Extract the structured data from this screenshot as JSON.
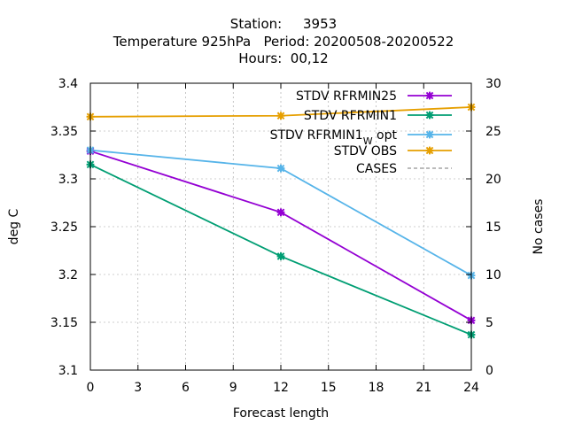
{
  "chart_data": {
    "type": "line",
    "title_lines": [
      "Station:     3953",
      "Temperature 925hPa   Period: 20200508-20200522",
      "Hours:  00,12"
    ],
    "xlabel": "Forecast length",
    "ylabel": "deg C",
    "y2label": "No cases",
    "xlim": [
      0,
      24
    ],
    "ylim": [
      3.1,
      3.4
    ],
    "y2lim": [
      0,
      30
    ],
    "x_ticks": [
      0,
      3,
      6,
      9,
      12,
      15,
      18,
      21,
      24
    ],
    "y_ticks": [
      "3.1",
      "3.15",
      "3.2",
      "3.25",
      "3.3",
      "3.35",
      "3.4"
    ],
    "y2_ticks": [
      0,
      5,
      10,
      15,
      20,
      25,
      30
    ],
    "grid": true,
    "legend_position": "top-right",
    "series": [
      {
        "name": "STDV RFRMIN25",
        "label_main": "STDV RFRMIN25",
        "label_sub": "",
        "label_suffix": "",
        "color": "#9400d3",
        "axis": "y",
        "dashed": false,
        "markers": true,
        "x": [
          0,
          12,
          24
        ],
        "values": [
          3.329,
          3.265,
          3.152
        ]
      },
      {
        "name": "STDV RFRMIN1",
        "label_main": "STDV RFRMIN1",
        "label_sub": "",
        "label_suffix": "",
        "color": "#009e73",
        "axis": "y",
        "dashed": false,
        "markers": true,
        "x": [
          0,
          12,
          24
        ],
        "values": [
          3.315,
          3.219,
          3.137
        ]
      },
      {
        "name": "STDV RFRMIN1_W opt",
        "label_main": "STDV RFRMIN1",
        "label_sub": "W",
        "label_suffix": " opt",
        "color": "#56b4e9",
        "axis": "y",
        "dashed": false,
        "markers": true,
        "x": [
          0,
          12,
          24
        ],
        "values": [
          3.33,
          3.311,
          3.199
        ]
      },
      {
        "name": "STDV OBS",
        "label_main": "STDV OBS",
        "label_sub": "",
        "label_suffix": "",
        "color": "#e69f00",
        "axis": "y",
        "dashed": false,
        "markers": true,
        "x": [
          0,
          12,
          24
        ],
        "values": [
          3.365,
          3.366,
          3.375
        ]
      },
      {
        "name": "CASES",
        "label_main": "CASES",
        "label_sub": "",
        "label_suffix": "",
        "color": "#777777",
        "axis": "y2",
        "dashed": true,
        "markers": false,
        "x": [
          0,
          12,
          24
        ],
        "values": [
          30,
          30,
          30
        ]
      }
    ]
  }
}
